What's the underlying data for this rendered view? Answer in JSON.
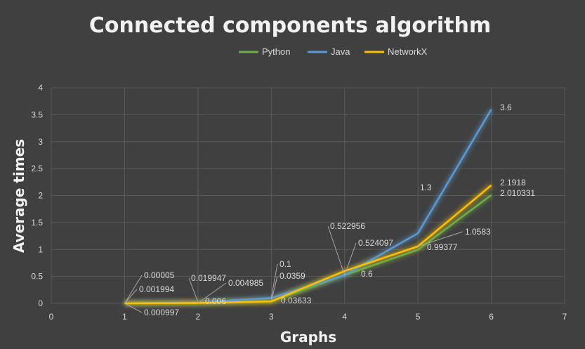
{
  "chart_data": {
    "type": "line",
    "title": "Connected components algorithm",
    "xlabel": "Graphs",
    "ylabel": "Average times",
    "xlim": [
      0,
      7
    ],
    "ylim": [
      0,
      4
    ],
    "x_ticks": [
      "0",
      "1",
      "2",
      "3",
      "4",
      "5",
      "6",
      "7"
    ],
    "y_ticks": [
      "0",
      "0.5",
      "1",
      "1.5",
      "2",
      "2.5",
      "3",
      "3.5",
      "4"
    ],
    "grid": true,
    "legend_position": "top",
    "series": [
      {
        "name": "Python",
        "color": "#70ad47",
        "x": [
          1,
          2,
          3,
          4,
          5,
          6
        ],
        "values": [
          0.000997,
          0.004985,
          0.0359,
          0.524097,
          0.99377,
          2.010331
        ],
        "labels": [
          "0.000997",
          "0.004985",
          "0.0359",
          "0.524097",
          "0.99377",
          "2.010331"
        ]
      },
      {
        "name": "Java",
        "color": "#5b9bd5",
        "x": [
          1,
          2,
          3,
          4,
          5,
          6
        ],
        "values": [
          5e-05,
          0.019947,
          0.1,
          0.522956,
          1.3,
          3.6
        ],
        "labels": [
          "0.00005",
          "0.019947",
          "0.1",
          "0.522956",
          "1.3",
          "3.6"
        ]
      },
      {
        "name": "NetworkX",
        "color": "#ffc000",
        "x": [
          1,
          2,
          3,
          4,
          5,
          6
        ],
        "values": [
          0.001994,
          0.006,
          0.03633,
          0.6,
          1.0583,
          2.1918
        ],
        "labels": [
          "0.001994",
          "0.006",
          "0.03633",
          "0.6",
          "1.0583",
          "2.1918"
        ]
      }
    ]
  }
}
